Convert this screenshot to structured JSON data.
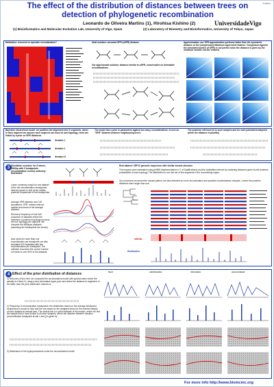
{
  "poster_id": "P-030-G",
  "title_line1": "The effect of the distribution of distances between trees on",
  "title_line2": "detection of phylogenetic recombination",
  "authors": "Leonardo de Oliveira Martins (1), Hirohisa Kishino (2)",
  "affiliation1": "(1) Bioinformatics and Molecular Evolution Lab, University of Vigo, Spain",
  "affiliation2": "(2) Laboratory of Biometry and Bioinformatics, University of Tokyo, Japan",
  "logo_text": "UniversidadeVigo",
  "panel1": {
    "heading": "Motivation: recurrent or sporadic recombination?",
    "ideal_heading": "Ideal solution: unrooted SPR (uSPR) distance",
    "approx_heading": "Our approximate solution: distance similar to uSPR, conservative on detectable recombinations",
    "approx_right_heading": "Approximation: our SPR approximation performs better than the symmetric distance or the (complement) Maximum Agreement Subtree. Comparison against the simulated number of SPRs is not perfect since the distance is given by the minimum number, not the realized."
  },
  "panel2": {
    "heading": "Bayesian hierarchical model: we partition the alignment into K segments, where in each segment we assume each segment can have its own topology; trees are linked by a prior on SPR distances",
    "iterations": [
      "iteration 1",
      "iteration 2",
      "iteration N"
    ],
    "middle_heading": "The model has a prior in parameters against too many recombinations: it uses an \"SPR\" distance between neighbouring trees:",
    "right_heading": "The posterior will have (K-1) such samples and for each potential breakpoint (when the distance is positive)"
  },
  "panel3": {
    "sim_heading": "Simulation scenario: for 8 leaves, 2000bp with 5 breakpoints (recombination events) uniformly distributed",
    "sim_a": "Lower: summary output for one dataset of the five recombination breakpoints interval (shown in red) at the middle, posterior frequencies of the breakpoints.",
    "sim_b": "Average SPR distance over 100 simulations: SPR, median interval, median and mean of the average distance.",
    "sim_c": "Recovery frequency of true tree: proportion of datasets where the maximum a posteriori topology recovers the true topology per segment. We compare the MrBayes analyses (assuming the breakpoints are known).",
    "sim_d": "Also works for more than one recombination per breakpoint: we also simulated 100 replicates with five recombinations per breakpoint. The software recovered the correct number of events in over 50% of the datasets.",
    "real_heading": "Real dataset: CRF12 genomic sequences with similar mosaic structure",
    "real_a": "The mosaics were estimated using jpHMM (implementation in C of DualBrothers) and the similarities inferred by clustering distances given by the posterior probabilities of each topology. The distribution is over the set of five segments in the recombining region.",
    "real_b": "Our procedure recovered the mosaic pattern, but also detected six more recombination and possible recombinations hotspots - where the posterior distances were larger than one.",
    "label_interval": "interval",
    "label_distribution": "Distribution"
  },
  "panel4": {
    "heading": "Effect of the prior distribution of distances",
    "p1": "1) Recovery of true tree: we compared the unconstrained model with special cases where the penalty is a fixed λ1; using a very informative hyper-prior and where the distance is neglected. In the latter case the prior distribution reduces to",
    "p2": "2) Frequency of recombination breakpoints: the distribution based on the average breakpoint frequencies is shown in blue and the one based on the weighted mean for the ordered sample of each dataset as vertical bars. The vertical line is a point estimate of the mosaic, where we find the sample that is most similar to all other samples, where the distance between mosaics (recombination breakpoint at site i; and j) is given by",
    "p3": "3) Distribution of the hyperparameters under the unconstrained model:",
    "column_labels": [
      "fixed",
      "uninformative",
      "informative",
      "unconstrained"
    ]
  },
  "footer": {
    "prefix": "For more info",
    "url": "http://www.biomcmc.org"
  }
}
